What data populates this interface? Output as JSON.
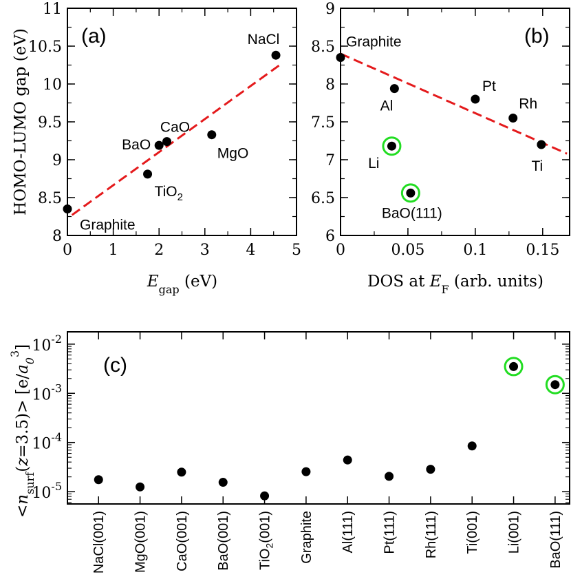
{
  "chart_data": [
    {
      "type": "scatter",
      "panel_label": "(a)",
      "title": "",
      "xlabel": {
        "main": "E",
        "sub": "gap",
        "unit": " (eV)"
      },
      "ylabel": "HOMO-LUMO gap (eV)",
      "xlim": [
        0,
        5
      ],
      "ylim": [
        8,
        11
      ],
      "xticks": [
        "0",
        "1",
        "2",
        "3",
        "4",
        "5"
      ],
      "yticks": [
        "8",
        "8.5",
        "9",
        "9.5",
        "10",
        "10.5",
        "11"
      ],
      "points": [
        {
          "label": "Graphite",
          "x": 0.0,
          "y": 8.35,
          "label_pos": "below-right",
          "highlight": false
        },
        {
          "label": "TiO",
          "label_sub": "2",
          "x": 1.75,
          "y": 8.81,
          "label_pos": "below-right",
          "highlight": false
        },
        {
          "label": "BaO",
          "x": 2.0,
          "y": 9.19,
          "label_pos": "left",
          "highlight": false
        },
        {
          "label": "CaO",
          "x": 2.17,
          "y": 9.24,
          "label_pos": "above",
          "highlight": false
        },
        {
          "label": "MgO",
          "x": 3.15,
          "y": 9.33,
          "label_pos": "below-right",
          "highlight": false
        },
        {
          "label": "NaCl",
          "x": 4.55,
          "y": 10.38,
          "label_pos": "above-left",
          "highlight": false
        }
      ],
      "fit_line": {
        "x": [
          0.1,
          4.7
        ],
        "y": [
          8.27,
          10.28
        ],
        "style": "dashed",
        "color": "#e41a1c"
      }
    },
    {
      "type": "scatter",
      "panel_label": "(b)",
      "title": "",
      "xlabel": {
        "pre": "DOS at ",
        "main": "E",
        "sub": "F",
        "unit": " (arb. units)"
      },
      "ylabel": "",
      "xlim": [
        0,
        0.17
      ],
      "ylim": [
        6,
        9
      ],
      "xticks": [
        "0",
        "0.05",
        "0.1",
        "0.15"
      ],
      "yticks": [
        "6",
        "6.5",
        "7",
        "7.5",
        "8",
        "8.5",
        "9"
      ],
      "points": [
        {
          "label": "Graphite",
          "x": 0.0,
          "y": 8.35,
          "label_pos": "above-right",
          "highlight": false
        },
        {
          "label": "Al",
          "x": 0.04,
          "y": 7.94,
          "label_pos": "below-left",
          "highlight": false
        },
        {
          "label": "Li",
          "x": 0.038,
          "y": 7.18,
          "label_pos": "below-left",
          "highlight": true
        },
        {
          "label": "BaO(111)",
          "x": 0.052,
          "y": 6.56,
          "label_pos": "below",
          "highlight": true
        },
        {
          "label": "Pt",
          "x": 0.1,
          "y": 7.8,
          "label_pos": "above-right",
          "highlight": false
        },
        {
          "label": "Rh",
          "x": 0.128,
          "y": 7.55,
          "label_pos": "above-right",
          "highlight": false
        },
        {
          "label": "Ti",
          "x": 0.149,
          "y": 7.2,
          "label_pos": "below",
          "highlight": false
        }
      ],
      "fit_line": {
        "x": [
          0.0,
          0.168
        ],
        "y": [
          8.4,
          7.08
        ],
        "style": "dashed",
        "color": "#e41a1c"
      }
    },
    {
      "type": "scatter",
      "panel_label": "(c)",
      "title": "",
      "ylabel": "<n_surf(z=3.5)> [e/a_0^3]",
      "yscale": "log",
      "ylim_exp": [
        -5.25,
        -1.75
      ],
      "ytick_exponents": [
        "-5",
        "-4",
        "-3",
        "-2"
      ],
      "ytick_base": "10",
      "categories": [
        "NaCl(001)",
        "MgO(001)",
        "CaO(001)",
        "BaO(001)",
        "TiO2(001)",
        "Graphite",
        "Al(111)",
        "Pt(111)",
        "Rh(111)",
        "Ti(001)",
        "Li(001)",
        "BaO(111)"
      ],
      "category_labels": [
        {
          "text": "NaCl(001)"
        },
        {
          "text": "MgO(001)"
        },
        {
          "text": "CaO(001)"
        },
        {
          "text": "BaO(001)"
        },
        {
          "text": "TiO",
          "sub": "2",
          "rest": "(001)"
        },
        {
          "text": "Graphite"
        },
        {
          "text": "Al(111)"
        },
        {
          "text": "Pt(111)"
        },
        {
          "text": "Rh(111)"
        },
        {
          "text": "Ti(001)"
        },
        {
          "text": "Li(001)"
        },
        {
          "text": "BaO(111)"
        }
      ],
      "values": [
        1.75e-05,
        1.25e-05,
        2.5e-05,
        1.55e-05,
        8.2e-06,
        2.55e-05,
        4.4e-05,
        2.05e-05,
        2.85e-05,
        8.5e-05,
        0.0035,
        0.0015
      ],
      "highlight": [
        false,
        false,
        false,
        false,
        false,
        false,
        false,
        false,
        false,
        false,
        true,
        true
      ]
    }
  ],
  "colors": {
    "marker": "#000000",
    "highlight_ring": "#22dd22",
    "fit_line": "#e41a1c"
  }
}
